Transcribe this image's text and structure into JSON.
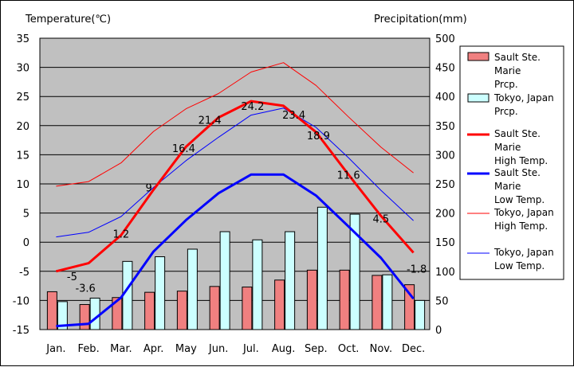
{
  "chart_data": {
    "type": "bar",
    "y_left_title": "Temperature(℃)",
    "y_right_title": "Precipitation(mm)",
    "categories": [
      "Jan.",
      "Feb.",
      "Mar.",
      "Apr.",
      "May",
      "Jun.",
      "Jul.",
      "Aug.",
      "Sep.",
      "Oct.",
      "Nov.",
      "Dec."
    ],
    "ylim_left": [
      -15,
      35
    ],
    "ylim_right": [
      0,
      500
    ],
    "yticks_left": [
      "35",
      "30",
      "25",
      "20",
      "15",
      "10",
      "5",
      "0",
      "-5",
      "-10",
      "-15"
    ],
    "yticks_right": [
      "500",
      "450",
      "400",
      "350",
      "300",
      "250",
      "200",
      "150",
      "100",
      "50",
      "0"
    ],
    "grid": true,
    "legend_position": "right",
    "bar_series": [
      {
        "name": "Sault Ste. Marie\n Prcp.",
        "legend_lines": [
          "Sault Ste.",
          "Marie",
          "  Prcp."
        ],
        "color": "#f08080",
        "values": [
          65,
          43,
          55,
          64,
          66,
          74,
          73,
          85,
          102,
          102,
          93,
          77
        ]
      },
      {
        "name": "Tokyo, Japan\nPrcp.",
        "legend_lines": [
          "Tokyo, Japan",
          "Prcp."
        ],
        "color": "#ccffff",
        "values": [
          48,
          54,
          117,
          125,
          138,
          168,
          154,
          168,
          210,
          198,
          94,
          50
        ]
      }
    ],
    "line_series": [
      {
        "name": "Sault Ste. Marie\n High Temp.",
        "legend_lines": [
          "Sault Ste.",
          "Marie",
          "  High Temp."
        ],
        "color": "#ff0000",
        "width": 3,
        "values": [
          -5,
          -3.6,
          1.2,
          9,
          16.4,
          21.4,
          24.2,
          23.4,
          18.9,
          11.6,
          4.5,
          -1.8
        ],
        "labels": [
          "-5",
          "-3.6",
          "1.2",
          "9",
          "16.4",
          "21.4",
          "24.2",
          "23.4",
          "18.9",
          "11.6",
          "4.5",
          "-1.8"
        ]
      },
      {
        "name": "Sault Ste. Marie\n Low Temp.",
        "legend_lines": [
          "Sault Ste.",
          "Marie",
          "  Low Temp."
        ],
        "color": "#0000ff",
        "width": 3,
        "values": [
          -14.4,
          -14.0,
          -9.5,
          -1.6,
          3.8,
          8.4,
          11.6,
          11.6,
          8.0,
          2.7,
          -2.7,
          -9.7
        ]
      },
      {
        "name": "Tokyo, Japan\nHigh Temp.",
        "legend_lines": [
          "Tokyo, Japan",
          "High Temp."
        ],
        "color": "#ff0000",
        "width": 1,
        "values": [
          9.6,
          10.4,
          13.6,
          19.0,
          22.9,
          25.5,
          29.2,
          30.8,
          26.9,
          21.5,
          16.3,
          11.9
        ]
      },
      {
        "name": "Tokyo, Japan\nLow Temp.",
        "legend_lines": [
          "Tokyo, Japan",
          "Low Temp."
        ],
        "color": "#0000ff",
        "width": 1,
        "values": [
          0.9,
          1.7,
          4.4,
          9.4,
          14.0,
          18.0,
          21.8,
          23.0,
          19.7,
          14.5,
          8.9,
          3.7
        ]
      }
    ]
  }
}
